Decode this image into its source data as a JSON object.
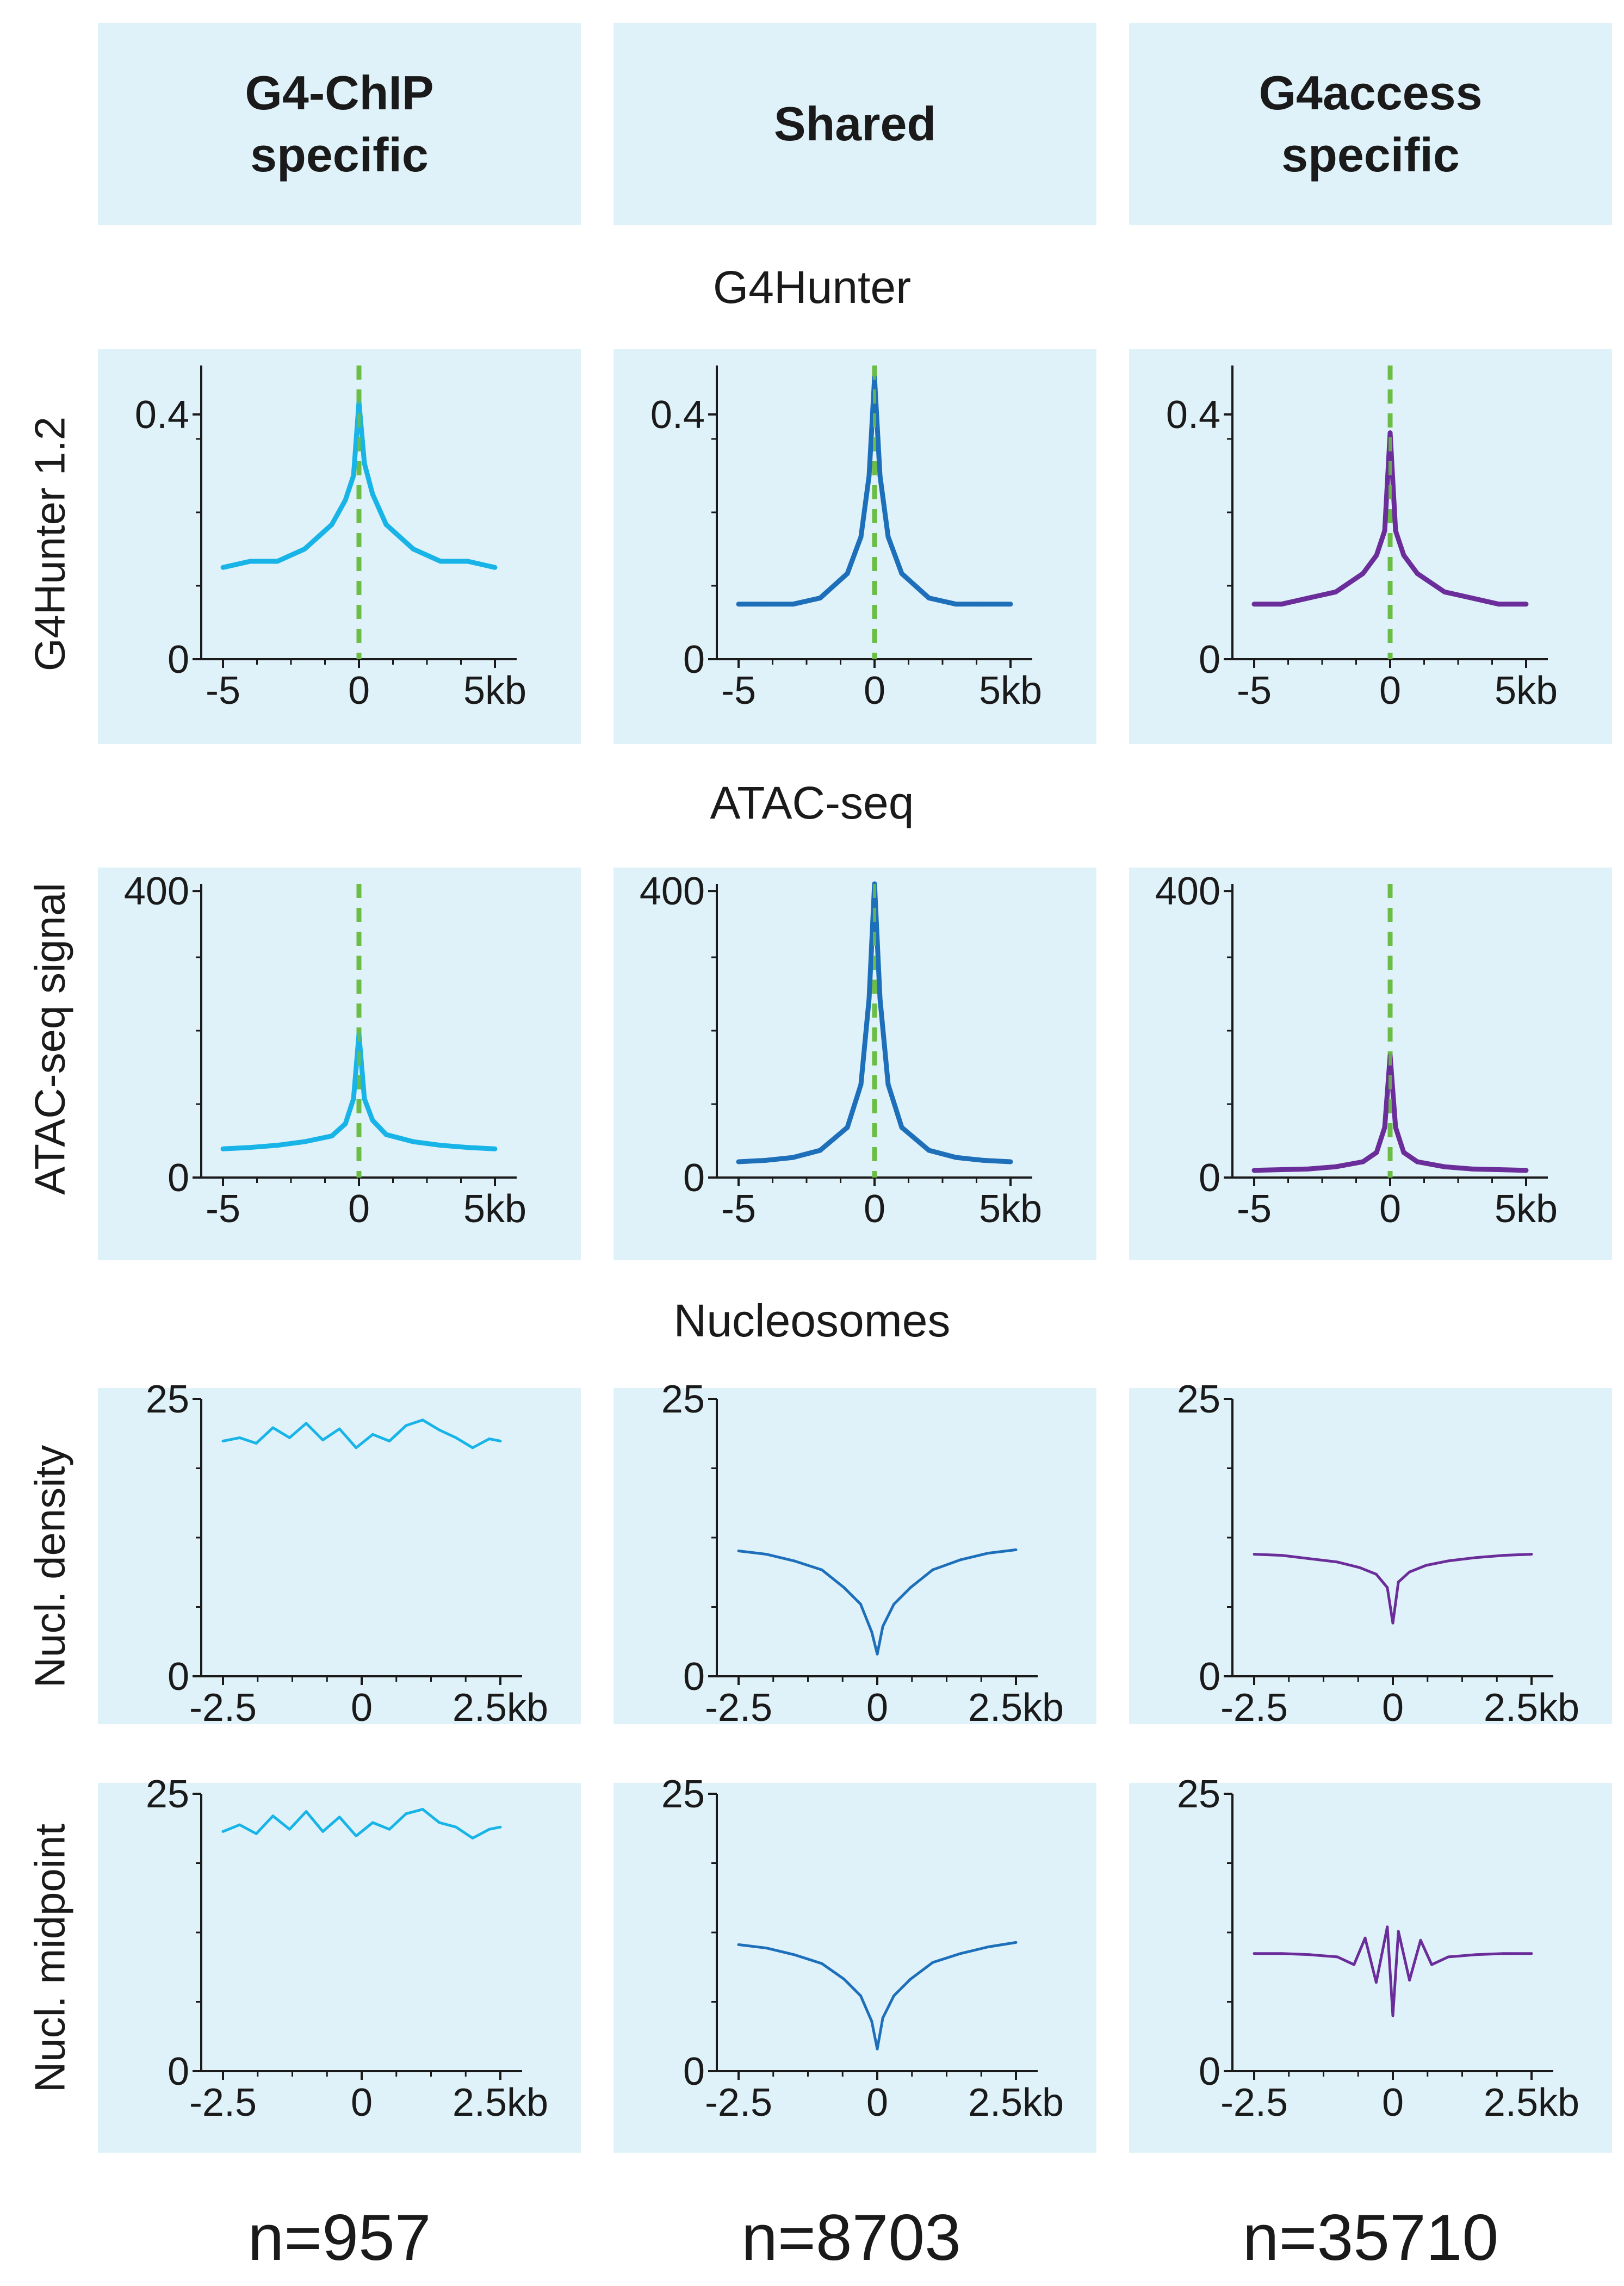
{
  "groups": [
    {
      "title": "G4-ChIP\nspecific",
      "n": "n=957",
      "color": "#18b4e8"
    },
    {
      "title": "Shared",
      "n": "n=8703",
      "color": "#1e6fba"
    },
    {
      "title": "G4access\nspecific",
      "n": "n=35710",
      "color": "#6a2d9a"
    }
  ],
  "sections": {
    "g4hunter": "G4Hunter",
    "atac": "ATAC-seq",
    "nucleosomes": "Nucleosomes"
  },
  "ylabels": {
    "g4hunter": "G4Hunter 1.2",
    "atac": "ATAC-seq signal",
    "density": "Nucl. density",
    "midpoint": "Nucl. midpoint"
  },
  "colors": {
    "panel_bg": "#e0f2f9",
    "center_line": "#6cbd45"
  },
  "chart_data": [
    {
      "type": "line",
      "row": "G4Hunter",
      "group": "G4-ChIP specific",
      "x_range": [
        -5,
        5
      ],
      "x_unit": "kb",
      "ylim": [
        0,
        0.48
      ],
      "yticks": [
        "0",
        "0.4"
      ],
      "xticks": [
        "-5",
        "0",
        "5kb"
      ],
      "center_line": true,
      "x": [
        -5,
        -4,
        -3,
        -2,
        -1,
        -0.5,
        -0.2,
        0,
        0.2,
        0.5,
        1,
        2,
        3,
        4,
        5
      ],
      "values": [
        0.15,
        0.16,
        0.16,
        0.18,
        0.22,
        0.26,
        0.3,
        0.42,
        0.32,
        0.27,
        0.22,
        0.18,
        0.16,
        0.16,
        0.15
      ]
    },
    {
      "type": "line",
      "row": "G4Hunter",
      "group": "Shared",
      "x_range": [
        -5,
        5
      ],
      "x_unit": "kb",
      "ylim": [
        0,
        0.48
      ],
      "yticks": [
        "0",
        "0.4"
      ],
      "xticks": [
        "-5",
        "0",
        "5kb"
      ],
      "center_line": true,
      "x": [
        -5,
        -4,
        -3,
        -2,
        -1,
        -0.5,
        -0.2,
        0,
        0.2,
        0.5,
        1,
        2,
        3,
        4,
        5
      ],
      "values": [
        0.09,
        0.09,
        0.09,
        0.1,
        0.14,
        0.2,
        0.3,
        0.46,
        0.3,
        0.2,
        0.14,
        0.1,
        0.09,
        0.09,
        0.09
      ]
    },
    {
      "type": "line",
      "row": "G4Hunter",
      "group": "G4access specific",
      "x_range": [
        -5,
        5
      ],
      "x_unit": "kb",
      "ylim": [
        0,
        0.48
      ],
      "yticks": [
        "0",
        "0.4"
      ],
      "xticks": [
        "-5",
        "0",
        "5kb"
      ],
      "center_line": true,
      "x": [
        -5,
        -4,
        -3,
        -2,
        -1,
        -0.5,
        -0.2,
        0,
        0.2,
        0.5,
        1,
        2,
        3,
        4,
        5
      ],
      "values": [
        0.09,
        0.09,
        0.1,
        0.11,
        0.14,
        0.17,
        0.21,
        0.37,
        0.21,
        0.17,
        0.14,
        0.11,
        0.1,
        0.09,
        0.09
      ]
    },
    {
      "type": "line",
      "row": "ATAC-seq",
      "group": "G4-ChIP specific",
      "x_range": [
        -5,
        5
      ],
      "x_unit": "kb",
      "ylim": [
        0,
        410
      ],
      "yticks": [
        "0",
        "400"
      ],
      "xticks": [
        "-5",
        "0",
        "5kb"
      ],
      "center_line": true,
      "x": [
        -5,
        -4,
        -3,
        -2,
        -1,
        -0.5,
        -0.2,
        0,
        0.2,
        0.5,
        1,
        2,
        3,
        4,
        5
      ],
      "values": [
        40,
        42,
        45,
        50,
        58,
        75,
        110,
        200,
        110,
        80,
        60,
        50,
        45,
        42,
        40
      ]
    },
    {
      "type": "line",
      "row": "ATAC-seq",
      "group": "Shared",
      "x_range": [
        -5,
        5
      ],
      "x_unit": "kb",
      "ylim": [
        0,
        410
      ],
      "yticks": [
        "0",
        "400"
      ],
      "xticks": [
        "-5",
        "0",
        "5kb"
      ],
      "center_line": true,
      "x": [
        -5,
        -4,
        -3,
        -2,
        -1,
        -0.5,
        -0.2,
        0,
        0.2,
        0.5,
        1,
        2,
        3,
        4,
        5
      ],
      "values": [
        22,
        24,
        28,
        38,
        70,
        130,
        250,
        410,
        250,
        130,
        70,
        38,
        28,
        24,
        22
      ]
    },
    {
      "type": "line",
      "row": "ATAC-seq",
      "group": "G4access specific",
      "x_range": [
        -5,
        5
      ],
      "x_unit": "kb",
      "ylim": [
        0,
        410
      ],
      "yticks": [
        "0",
        "400"
      ],
      "xticks": [
        "-5",
        "0",
        "5kb"
      ],
      "center_line": true,
      "x": [
        -5,
        -4,
        -3,
        -2,
        -1,
        -0.5,
        -0.2,
        0,
        0.2,
        0.5,
        1,
        2,
        3,
        4,
        5
      ],
      "values": [
        10,
        11,
        12,
        15,
        22,
        35,
        70,
        170,
        70,
        35,
        22,
        15,
        12,
        11,
        10
      ]
    },
    {
      "type": "line",
      "row": "Nucl. density",
      "group": "G4-ChIP specific",
      "x_range": [
        -2.5,
        2.5
      ],
      "x_unit": "kb",
      "ylim": [
        0,
        25
      ],
      "yticks": [
        "0",
        "25"
      ],
      "xticks": [
        "-2.5",
        "0",
        "2.5kb"
      ],
      "x": [
        -2.5,
        -2.2,
        -1.9,
        -1.6,
        -1.3,
        -1.0,
        -0.7,
        -0.4,
        -0.1,
        0.2,
        0.5,
        0.8,
        1.1,
        1.4,
        1.7,
        2.0,
        2.3,
        2.5
      ],
      "values": [
        21.2,
        21.5,
        21,
        22.4,
        21.5,
        22.8,
        21.3,
        22.3,
        20.6,
        21.8,
        21.2,
        22.6,
        23.1,
        22.2,
        21.5,
        20.6,
        21.4,
        21.2
      ]
    },
    {
      "type": "line",
      "row": "Nucl. density",
      "group": "Shared",
      "x_range": [
        -2.5,
        2.5
      ],
      "x_unit": "kb",
      "ylim": [
        0,
        25
      ],
      "yticks": [
        "0",
        "25"
      ],
      "xticks": [
        "-2.5",
        "0",
        "2.5kb"
      ],
      "x": [
        -2.5,
        -2,
        -1.5,
        -1,
        -0.6,
        -0.3,
        -0.1,
        0,
        0.1,
        0.3,
        0.6,
        1,
        1.5,
        2,
        2.5
      ],
      "values": [
        11.3,
        11.0,
        10.4,
        9.6,
        8.0,
        6.5,
        4.0,
        2.0,
        4.5,
        6.5,
        8.0,
        9.6,
        10.5,
        11.1,
        11.4
      ]
    },
    {
      "type": "line",
      "row": "Nucl. density",
      "group": "G4access specific",
      "x_range": [
        -2.5,
        2.5
      ],
      "x_unit": "kb",
      "ylim": [
        0,
        25
      ],
      "yticks": [
        "0",
        "25"
      ],
      "xticks": [
        "-2.5",
        "0",
        "2.5kb"
      ],
      "x": [
        -2.5,
        -2,
        -1.5,
        -1,
        -0.6,
        -0.3,
        -0.1,
        0,
        0.1,
        0.3,
        0.6,
        1,
        1.5,
        2,
        2.5
      ],
      "values": [
        11.0,
        10.9,
        10.6,
        10.3,
        9.8,
        9.2,
        8.0,
        4.8,
        8.5,
        9.4,
        10.0,
        10.4,
        10.7,
        10.9,
        11.0
      ]
    },
    {
      "type": "line",
      "row": "Nucl. midpoint",
      "group": "G4-ChIP specific",
      "x_range": [
        -2.5,
        2.5
      ],
      "x_unit": "kb",
      "ylim": [
        0,
        25
      ],
      "yticks": [
        "0",
        "25"
      ],
      "xticks": [
        "-2.5",
        "0",
        "2.5kb"
      ],
      "x": [
        -2.5,
        -2.2,
        -1.9,
        -1.6,
        -1.3,
        -1.0,
        -0.7,
        -0.4,
        -0.1,
        0.2,
        0.5,
        0.8,
        1.1,
        1.4,
        1.7,
        2.0,
        2.3,
        2.5
      ],
      "values": [
        21.6,
        22.2,
        21.4,
        23.0,
        21.8,
        23.4,
        21.6,
        22.9,
        21.2,
        22.4,
        21.8,
        23.2,
        23.6,
        22.4,
        22.0,
        21.0,
        21.8,
        22.0
      ]
    },
    {
      "type": "line",
      "row": "Nucl. midpoint",
      "group": "Shared",
      "x_range": [
        -2.5,
        2.5
      ],
      "x_unit": "kb",
      "ylim": [
        0,
        25
      ],
      "yticks": [
        "0",
        "25"
      ],
      "xticks": [
        "-2.5",
        "0",
        "2.5kb"
      ],
      "x": [
        -2.5,
        -2,
        -1.5,
        -1,
        -0.6,
        -0.3,
        -0.1,
        0,
        0.1,
        0.3,
        0.6,
        1,
        1.5,
        2,
        2.5
      ],
      "values": [
        11.4,
        11.1,
        10.5,
        9.7,
        8.3,
        6.8,
        4.5,
        2.0,
        4.8,
        6.8,
        8.3,
        9.8,
        10.6,
        11.2,
        11.6
      ]
    },
    {
      "type": "line",
      "row": "Nucl. midpoint",
      "group": "G4access specific",
      "x_range": [
        -2.5,
        2.5
      ],
      "x_unit": "kb",
      "ylim": [
        0,
        25
      ],
      "yticks": [
        "0",
        "25"
      ],
      "xticks": [
        "-2.5",
        "0",
        "2.5kb"
      ],
      "x": [
        -2.5,
        -2,
        -1.5,
        -1,
        -0.7,
        -0.5,
        -0.3,
        -0.1,
        0,
        0.1,
        0.3,
        0.5,
        0.7,
        1,
        1.5,
        2,
        2.5
      ],
      "values": [
        10.6,
        10.6,
        10.5,
        10.3,
        9.6,
        12.0,
        8.0,
        13.0,
        5.0,
        12.6,
        8.2,
        11.8,
        9.6,
        10.3,
        10.5,
        10.6,
        10.6
      ]
    }
  ]
}
